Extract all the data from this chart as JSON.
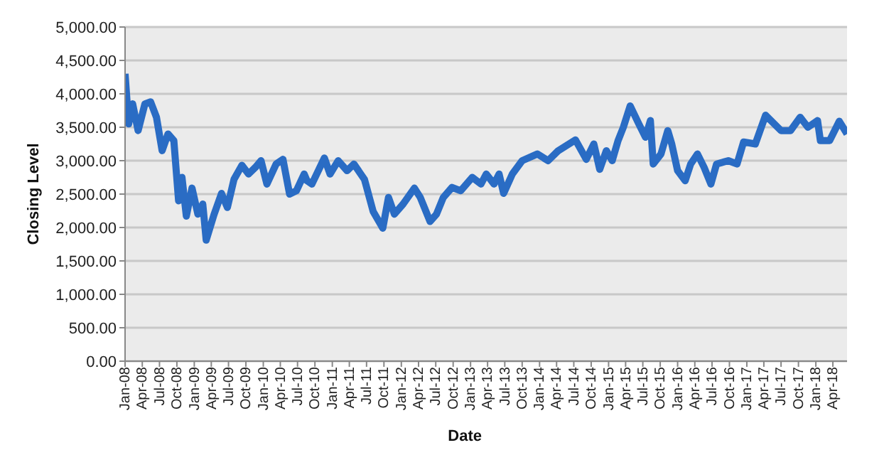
{
  "chart_data": {
    "type": "line",
    "xlabel": "Date",
    "ylabel": "Closing Level",
    "x": [
      "2008-01-01",
      "2008-01-20",
      "2008-02-10",
      "2008-03-10",
      "2008-04-15",
      "2008-05-15",
      "2008-06-15",
      "2008-07-15",
      "2008-08-15",
      "2008-09-15",
      "2008-10-10",
      "2008-10-28",
      "2008-11-20",
      "2008-12-20",
      "2009-01-20",
      "2009-02-15",
      "2009-03-05",
      "2009-04-15",
      "2009-05-25",
      "2009-06-25",
      "2009-07-30",
      "2009-09-10",
      "2009-10-15",
      "2009-11-20",
      "2009-12-20",
      "2010-01-20",
      "2010-03-10",
      "2010-04-15",
      "2010-05-20",
      "2010-06-25",
      "2010-08-05",
      "2010-08-20",
      "2010-09-15",
      "2010-11-20",
      "2010-12-20",
      "2011-02-01",
      "2011-03-20",
      "2011-04-25",
      "2011-06-20",
      "2011-08-05",
      "2011-09-25",
      "2011-10-25",
      "2011-11-25",
      "2012-01-10",
      "2012-03-10",
      "2012-04-10",
      "2012-06-01",
      "2012-07-05",
      "2012-08-10",
      "2012-09-25",
      "2012-11-10",
      "2013-01-10",
      "2013-02-25",
      "2013-03-25",
      "2013-05-05",
      "2013-06-01",
      "2013-06-25",
      "2013-08-10",
      "2013-10-01",
      "2013-12-20",
      "2014-02-15",
      "2014-04-10",
      "2014-07-10",
      "2014-09-05",
      "2014-10-15",
      "2014-11-15",
      "2014-12-20",
      "2015-01-20",
      "2015-02-20",
      "2015-03-20",
      "2015-04-25",
      "2015-06-10",
      "2015-07-15",
      "2015-08-10",
      "2015-08-25",
      "2015-10-05",
      "2015-11-10",
      "2015-12-01",
      "2016-01-01",
      "2016-02-10",
      "2016-03-10",
      "2016-04-15",
      "2016-05-20",
      "2016-06-25",
      "2016-07-25",
      "2016-09-25",
      "2016-11-10",
      "2016-12-15",
      "2017-02-15",
      "2017-04-10",
      "2017-07-01",
      "2017-08-20",
      "2017-10-10",
      "2017-11-20",
      "2018-01-10",
      "2018-01-25",
      "2018-03-15",
      "2018-05-05",
      "2018-06-15"
    ],
    "series": [
      {
        "color": "#2a6cc4",
        "values": [
          4300,
          3550,
          3850,
          3450,
          3850,
          3880,
          3650,
          3150,
          3400,
          3300,
          2400,
          2750,
          2170,
          2590,
          2200,
          2350,
          1810,
          2190,
          2510,
          2300,
          2720,
          2930,
          2800,
          2900,
          3000,
          2650,
          2950,
          3020,
          2500,
          2550,
          2800,
          2700,
          2650,
          3040,
          2800,
          3000,
          2850,
          2950,
          2720,
          2240,
          1990,
          2450,
          2200,
          2350,
          2590,
          2450,
          2090,
          2200,
          2450,
          2600,
          2550,
          2750,
          2650,
          2800,
          2650,
          2800,
          2510,
          2800,
          3000,
          3100,
          3000,
          3150,
          3310,
          3020,
          3250,
          2870,
          3150,
          3000,
          3300,
          3500,
          3820,
          3550,
          3350,
          3600,
          2950,
          3100,
          3450,
          3250,
          2850,
          2700,
          2950,
          3100,
          2900,
          2650,
          2950,
          3000,
          2950,
          3280,
          3250,
          3680,
          3450,
          3450,
          3650,
          3500,
          3600,
          3300,
          3300,
          3590,
          3400
        ]
      }
    ],
    "xlim": [
      "2008-01-01",
      "2018-06-15"
    ],
    "xticks": [
      {
        "value": "2008-01",
        "label": "Jan-08"
      },
      {
        "value": "2008-04",
        "label": "Apr-08"
      },
      {
        "value": "2008-07",
        "label": "Jul-08"
      },
      {
        "value": "2008-10",
        "label": "Oct-08"
      },
      {
        "value": "2009-01",
        "label": "Jan-09"
      },
      {
        "value": "2009-04",
        "label": "Apr-09"
      },
      {
        "value": "2009-07",
        "label": "Jul-09"
      },
      {
        "value": "2009-10",
        "label": "Oct-09"
      },
      {
        "value": "2010-01",
        "label": "Jan-10"
      },
      {
        "value": "2010-04",
        "label": "Apr-10"
      },
      {
        "value": "2010-07",
        "label": "Jul-10"
      },
      {
        "value": "2010-10",
        "label": "Oct-10"
      },
      {
        "value": "2011-01",
        "label": "Jan-11"
      },
      {
        "value": "2011-04",
        "label": "Apr-11"
      },
      {
        "value": "2011-07",
        "label": "Jul-11"
      },
      {
        "value": "2011-10",
        "label": "Oct-11"
      },
      {
        "value": "2012-01",
        "label": "Jan-12"
      },
      {
        "value": "2012-04",
        "label": "Apr-12"
      },
      {
        "value": "2012-07",
        "label": "Jul-12"
      },
      {
        "value": "2012-10",
        "label": "Oct-12"
      },
      {
        "value": "2013-01",
        "label": "Jan-13"
      },
      {
        "value": "2013-04",
        "label": "Apr-13"
      },
      {
        "value": "2013-07",
        "label": "Jul-13"
      },
      {
        "value": "2013-10",
        "label": "Oct-13"
      },
      {
        "value": "2014-01",
        "label": "Jan-14"
      },
      {
        "value": "2014-04",
        "label": "Apr-14"
      },
      {
        "value": "2014-07",
        "label": "Jul-14"
      },
      {
        "value": "2014-10",
        "label": "Oct-14"
      },
      {
        "value": "2015-01",
        "label": "Jan-15"
      },
      {
        "value": "2015-04",
        "label": "Apr-15"
      },
      {
        "value": "2015-07",
        "label": "Jul-15"
      },
      {
        "value": "2015-10",
        "label": "Oct-15"
      },
      {
        "value": "2016-01",
        "label": "Jan-16"
      },
      {
        "value": "2016-04",
        "label": "Apr-16"
      },
      {
        "value": "2016-07",
        "label": "Jul-16"
      },
      {
        "value": "2016-10",
        "label": "Oct-16"
      },
      {
        "value": "2017-01",
        "label": "Jan-17"
      },
      {
        "value": "2017-04",
        "label": "Apr-17"
      },
      {
        "value": "2017-07",
        "label": "Jul-17"
      },
      {
        "value": "2017-10",
        "label": "Oct-17"
      },
      {
        "value": "2018-01",
        "label": "Jan-18"
      },
      {
        "value": "2018-04",
        "label": "Apr-18"
      }
    ],
    "ylim": [
      0,
      5000
    ],
    "yticks": [
      {
        "value": 0,
        "label": "0.00"
      },
      {
        "value": 500,
        "label": "500.00"
      },
      {
        "value": 1000,
        "label": "1,000.00"
      },
      {
        "value": 1500,
        "label": "1,500.00"
      },
      {
        "value": 2000,
        "label": "2,000.00"
      },
      {
        "value": 2500,
        "label": "2,500.00"
      },
      {
        "value": 3000,
        "label": "3,000.00"
      },
      {
        "value": 3500,
        "label": "3,500.00"
      },
      {
        "value": 4000,
        "label": "4,000.00"
      },
      {
        "value": 4500,
        "label": "4,500.00"
      },
      {
        "value": 5000,
        "label": "5,000.00"
      }
    ],
    "grid": "y",
    "marker": "none",
    "line_style": "solid"
  }
}
